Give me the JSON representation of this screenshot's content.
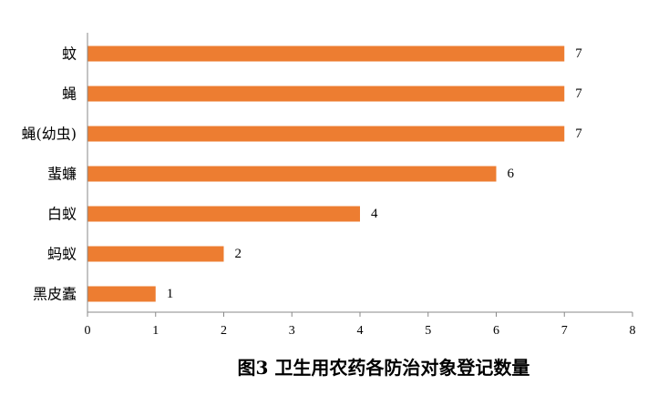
{
  "chart_data": {
    "type": "bar",
    "orientation": "horizontal",
    "title": "图3 卫生用农药各防治对象登记数量",
    "categories": [
      "蚊",
      "蝇",
      "蝇(幼虫)",
      "蜚蠊",
      "白蚁",
      "蚂蚁",
      "黑皮蠹"
    ],
    "values": [
      7,
      7,
      7,
      6,
      4,
      2,
      1
    ],
    "xlim": [
      0,
      8
    ],
    "xticks": [
      0,
      1,
      2,
      3,
      4,
      5,
      6,
      7,
      8
    ],
    "bar_color": "#ED7D31",
    "grid": false,
    "data_labels": true
  }
}
